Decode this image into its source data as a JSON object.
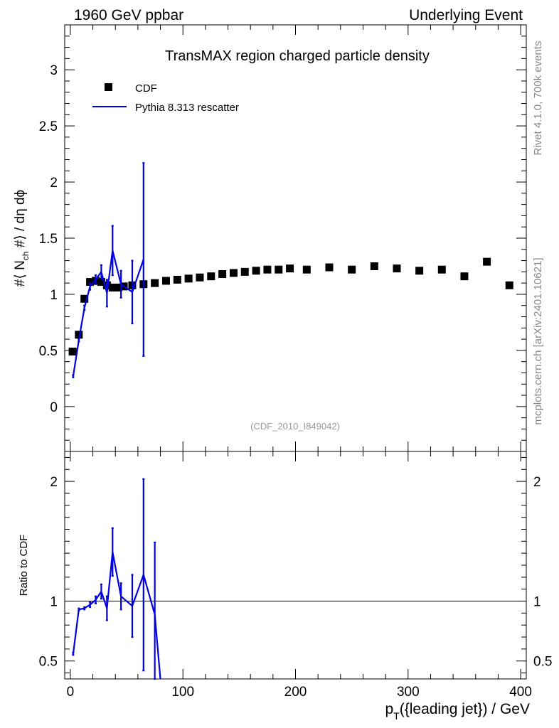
{
  "header": {
    "left": "1960 GeV ppbar",
    "right": "Underlying Event"
  },
  "side": {
    "rivet": "Rivet 4.1.0,  700k events",
    "mcplots": "mcplots.cern.ch [arXiv:2401.10621]"
  },
  "colors": {
    "data": "#000000",
    "mc": "#0000e0",
    "watermark": "#999999",
    "side": "#888888"
  },
  "chart_data": [
    {
      "type": "scatter",
      "panel": "main",
      "title": "TransMAX region charged particle density",
      "analysis_tag": "(CDF_2010_I849042)",
      "ylabel_parts": {
        "pre": "#⟨ N",
        "sub": "ch",
        "post": " #⟩ / dη dϕ"
      },
      "xlim": [
        -5,
        405
      ],
      "ylim": [
        -0.4,
        3.4
      ],
      "y_ticks": [
        {
          "v": 0,
          "label": "0"
        },
        {
          "v": 0.5,
          "label": "0.5"
        },
        {
          "v": 1,
          "label": "1"
        },
        {
          "v": 1.5,
          "label": "1.5"
        },
        {
          "v": 2,
          "label": "2"
        },
        {
          "v": 2.5,
          "label": "2.5"
        },
        {
          "v": 3,
          "label": "3"
        }
      ],
      "legend": {
        "position": "top-left",
        "entries": [
          {
            "label": "CDF",
            "marker": "square"
          },
          {
            "label": "Pythia 8.313 rescatter",
            "marker": "line"
          }
        ]
      },
      "series": [
        {
          "name": "CDF",
          "x": [
            2,
            7.5,
            12.5,
            17.5,
            22.5,
            27.5,
            32.5,
            37.5,
            42.5,
            47.5,
            55,
            65,
            75,
            85,
            95,
            105,
            115,
            125,
            135,
            145,
            155,
            165,
            175,
            185,
            195,
            210,
            230,
            250,
            270,
            290,
            310,
            330,
            350,
            370,
            390
          ],
          "y": [
            0.49,
            0.64,
            0.96,
            1.11,
            1.12,
            1.11,
            1.08,
            1.06,
            1.06,
            1.07,
            1.08,
            1.09,
            1.1,
            1.12,
            1.13,
            1.14,
            1.15,
            1.16,
            1.18,
            1.19,
            1.2,
            1.21,
            1.22,
            1.22,
            1.23,
            1.22,
            1.24,
            1.22,
            1.25,
            1.23,
            1.21,
            1.22,
            1.16,
            1.29,
            1.08
          ]
        },
        {
          "name": "Pythia 8.313 rescatter",
          "x": [
            2.5,
            7.5,
            12.5,
            17.5,
            22.5,
            27.5,
            32.5,
            37.5,
            45,
            55,
            65
          ],
          "y": [
            0.27,
            0.59,
            0.88,
            1.07,
            1.13,
            1.2,
            1.01,
            1.39,
            1.09,
            1.02,
            1.31
          ],
          "yerr": [
            0.01,
            0.01,
            0.02,
            0.03,
            0.04,
            0.06,
            0.12,
            0.22,
            0.12,
            0.28,
            0.86
          ]
        }
      ]
    },
    {
      "type": "line",
      "panel": "ratio",
      "ylabel": "Ratio to CDF",
      "xlabel_parts": {
        "pre": "p",
        "sub": "T",
        "post": "({leading jet}) / GeV"
      },
      "xlim": [
        -5,
        405
      ],
      "ylim": [
        0.35,
        2.25
      ],
      "x_ticks": [
        {
          "v": 0,
          "label": "0"
        },
        {
          "v": 100,
          "label": "100"
        },
        {
          "v": 200,
          "label": "200"
        },
        {
          "v": 300,
          "label": "300"
        },
        {
          "v": 400,
          "label": "400"
        }
      ],
      "y_ticks": [
        {
          "v": 0.5,
          "label": "0.5"
        },
        {
          "v": 1,
          "label": "1"
        },
        {
          "v": 2,
          "label": "2"
        }
      ],
      "reference_line": 1,
      "series": [
        {
          "name": "Pythia 8.313 rescatter / CDF",
          "x": [
            2.5,
            7.5,
            12.5,
            17.5,
            22.5,
            27.5,
            32.5,
            37.5,
            45,
            55,
            65,
            75,
            80
          ],
          "y": [
            0.56,
            0.93,
            0.94,
            0.97,
            1.01,
            1.08,
            0.94,
            1.41,
            1.04,
            0.96,
            1.22,
            0.89,
            0.3
          ],
          "yerr": [
            0.01,
            0.01,
            0.01,
            0.02,
            0.03,
            0.06,
            0.1,
            0.2,
            0.11,
            0.26,
            0.8,
            0.6,
            0
          ]
        }
      ]
    }
  ]
}
